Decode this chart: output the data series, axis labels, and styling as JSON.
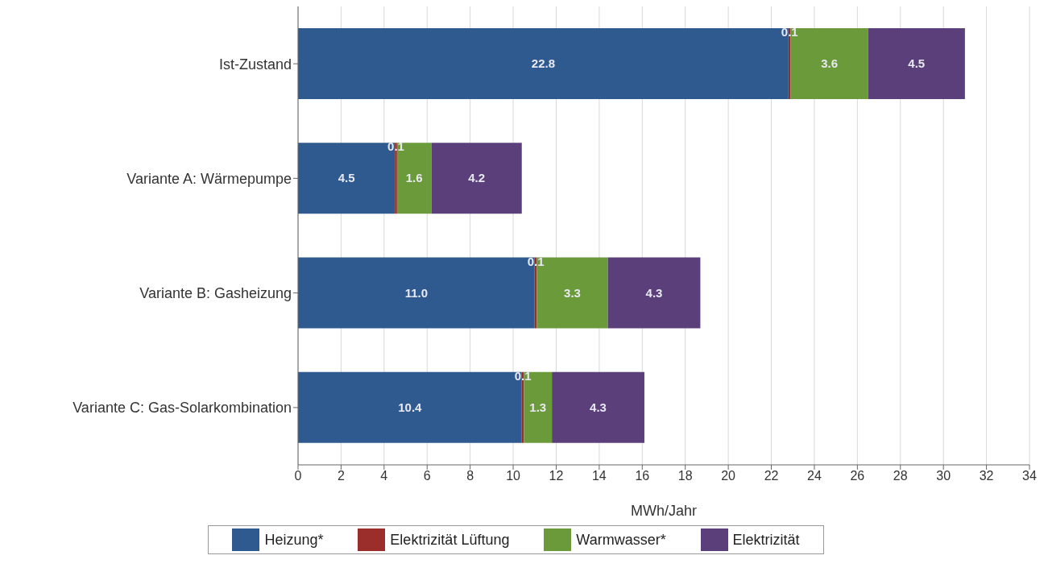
{
  "chart_data": {
    "type": "bar",
    "orientation": "horizontal",
    "stacked": true,
    "xlabel": "MWh/Jahr",
    "categories": [
      "Ist-Zustand",
      "Variante A: Wärmepumpe",
      "Variante B: Gasheizung",
      "Variante C: Gas-Solarkombination"
    ],
    "series": [
      {
        "name": "Heizung*",
        "color": "#2f5a8f",
        "values": [
          22.8,
          4.5,
          11.0,
          10.4
        ],
        "value_labels": [
          "22.8",
          "4.5",
          "11.0",
          "10.4"
        ]
      },
      {
        "name": "Elektrizität Lüftung",
        "color": "#9b2d2a",
        "values": [
          0.1,
          0.1,
          0.1,
          0.1
        ],
        "value_labels": [
          "0.1",
          "0.1",
          "0.1",
          "0.1"
        ]
      },
      {
        "name": "Warmwasser*",
        "color": "#6b9a3a",
        "values": [
          3.6,
          1.6,
          3.3,
          1.3
        ],
        "value_labels": [
          "3.6",
          "1.6",
          "3.3",
          "1.3"
        ]
      },
      {
        "name": "Elektrizität",
        "color": "#5a3f7a",
        "values": [
          4.5,
          4.2,
          4.3,
          4.3
        ],
        "value_labels": [
          "4.5",
          "4.2",
          "4.3",
          "4.3"
        ]
      }
    ],
    "xlim": [
      0,
      34
    ],
    "xticks": [
      0,
      2,
      4,
      6,
      8,
      10,
      12,
      14,
      16,
      18,
      20,
      22,
      24,
      26,
      28,
      30,
      32,
      34
    ],
    "grid": "x",
    "legend": "bottom"
  }
}
